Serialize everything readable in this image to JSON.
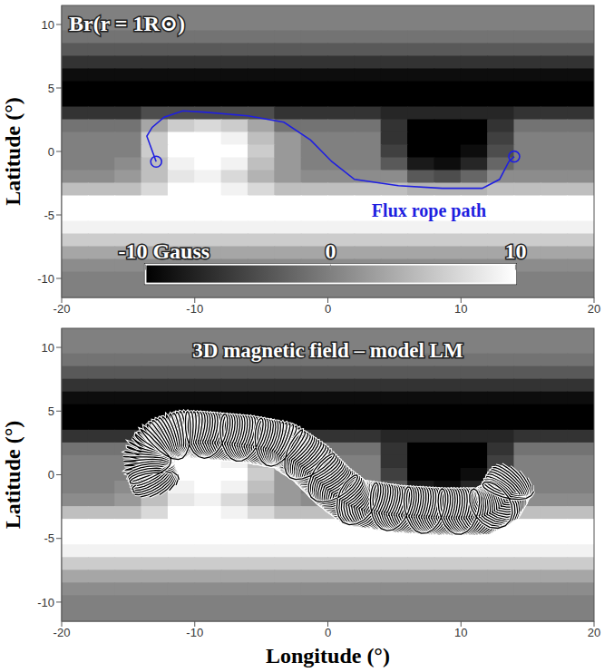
{
  "chart_data": [
    {
      "type": "heatmap",
      "title": "Br(r = 1R⊙)",
      "ylabel": "Latitude (°)",
      "xlim": [
        -20,
        20
      ],
      "xticks": [
        -20,
        -10,
        0,
        10,
        20
      ],
      "ylim": [
        -11.5,
        11.5
      ],
      "yticks": [
        -10,
        -5,
        0,
        5,
        10
      ],
      "colorbar": {
        "range": [
          -10,
          10
        ],
        "ticks": [
          {
            "value": -10,
            "label": "-10 Gauss"
          },
          0,
          10
        ]
      },
      "series": [
        {
          "name": "Flux rope path",
          "type": "line",
          "color": "#1f1fe0",
          "marker": "circle",
          "x": [
            -12.9,
            -13.6,
            -13.2,
            -12.3,
            -10.9,
            -9.3,
            -6.0,
            -3.3,
            -1.3,
            0.3,
            2.0,
            5.3,
            8.6,
            11.6,
            12.9,
            13.6,
            14.0
          ],
          "y": [
            -0.8,
            1.2,
            1.9,
            2.7,
            3.2,
            3.1,
            2.8,
            2.3,
            0.9,
            -0.8,
            -2.2,
            -2.7,
            -2.9,
            -2.9,
            -2.2,
            -0.8,
            -0.4
          ]
        }
      ]
    },
    {
      "type": "heatmap",
      "title": "3D magnetic field – model LM",
      "xlabel": "Longitude (°)",
      "ylabel": "Latitude (°)",
      "xlim": [
        -20,
        20
      ],
      "xticks": [
        -20,
        -10,
        0,
        10,
        20
      ],
      "ylim": [
        -11.5,
        11.5
      ],
      "yticks": [
        -10,
        -5,
        0,
        5,
        10
      ],
      "series": [
        {
          "type": "field_lines",
          "color": "#000000"
        }
      ]
    }
  ],
  "magnetogram": {
    "x": [
      -19,
      -17,
      -15,
      -13,
      -11,
      -9,
      -7,
      -5,
      -3,
      -1,
      1,
      3,
      5,
      7,
      9,
      11,
      13,
      15,
      17,
      19
    ],
    "y": [
      11,
      10,
      9,
      8,
      7,
      6,
      5,
      4,
      3,
      2,
      1,
      0,
      -1,
      -2,
      -3,
      -4,
      -5,
      -6,
      -7,
      -8,
      -9,
      -10,
      -11
    ],
    "values": [
      [
        0,
        0,
        0,
        0,
        0,
        0,
        0,
        0,
        0,
        0,
        0,
        0,
        0,
        0,
        0,
        0,
        0,
        0,
        0,
        0
      ],
      [
        0,
        0,
        0,
        0,
        0,
        0,
        0,
        0,
        0,
        0,
        0,
        0,
        0,
        0,
        0,
        0,
        0,
        0,
        0,
        0
      ],
      [
        -1,
        -1,
        -1,
        -1,
        -1,
        -1,
        -1,
        -1,
        -1,
        -1,
        -1,
        -1,
        -1,
        -1,
        -1,
        -1,
        -1,
        -1,
        -1,
        -1
      ],
      [
        -3,
        -3,
        -3,
        -3,
        -3,
        -3,
        -3,
        -3,
        -3,
        -3,
        -3,
        -3,
        -3,
        -3,
        -3,
        -3,
        -3,
        -3,
        -3,
        -3
      ],
      [
        -6,
        -6,
        -6,
        -6,
        -6,
        -6,
        -6,
        -6,
        -6,
        -6,
        -6,
        -6,
        -6,
        -6,
        -6,
        -6,
        -6,
        -6,
        -6,
        -6
      ],
      [
        -9,
        -9,
        -9,
        -9,
        -9,
        -9,
        -9,
        -9,
        -9,
        -9,
        -9,
        -9,
        -9,
        -9,
        -9,
        -9,
        -9,
        -9,
        -9,
        -9
      ],
      [
        -10,
        -10,
        -10,
        -10,
        -10,
        -10,
        -10,
        -10,
        -10,
        -10,
        -10,
        -10,
        -10,
        -10,
        -10,
        -10,
        -10,
        -10,
        -10,
        -10
      ],
      [
        -10,
        -10,
        -10,
        -10,
        -10,
        -10,
        -10,
        -10,
        -10,
        -10,
        -10,
        -10,
        -10,
        -10,
        -10,
        -10,
        -10,
        -10,
        -10,
        -10
      ],
      [
        -6,
        -6,
        -6,
        -4,
        -4,
        -4,
        -4,
        -4,
        -6,
        -6,
        -6,
        -6,
        -7,
        -7,
        -7,
        -7,
        -7,
        -6,
        -6,
        -6
      ],
      [
        -1,
        -1,
        -1,
        3,
        6,
        7,
        6,
        3,
        -1,
        -1,
        -1,
        -1,
        -6,
        -10,
        -10,
        -10,
        -6,
        -1,
        -1,
        -1
      ],
      [
        0,
        0,
        0,
        6,
        10,
        10,
        9,
        5,
        2,
        0,
        0,
        0,
        -6,
        -10,
        -10,
        -10,
        -5,
        0,
        0,
        0
      ],
      [
        0,
        0,
        0,
        6,
        10,
        10,
        10,
        6,
        2,
        0,
        0,
        0,
        -5,
        -10,
        -10,
        -9,
        -4,
        0,
        0,
        0
      ],
      [
        0,
        0,
        1,
        5,
        9,
        10,
        9,
        5,
        2,
        0,
        0,
        0,
        -3,
        -8,
        -9,
        -7,
        -2,
        0,
        0,
        0
      ],
      [
        1,
        1,
        2,
        5,
        8,
        9,
        7,
        4,
        2,
        1,
        1,
        1,
        1,
        -3,
        -4,
        -2,
        1,
        1,
        1,
        1
      ],
      [
        5,
        5,
        5,
        7,
        10,
        10,
        9,
        7,
        5,
        5,
        5,
        5,
        5,
        4,
        4,
        4,
        5,
        5,
        5,
        5
      ],
      [
        10,
        10,
        10,
        10,
        10,
        10,
        10,
        10,
        10,
        10,
        10,
        10,
        10,
        10,
        10,
        10,
        10,
        10,
        10,
        10
      ],
      [
        10,
        10,
        10,
        10,
        10,
        10,
        10,
        10,
        10,
        10,
        10,
        10,
        10,
        10,
        10,
        10,
        10,
        10,
        10,
        10
      ],
      [
        9,
        9,
        9,
        9,
        9,
        9,
        9,
        9,
        9,
        9,
        9,
        9,
        9,
        9,
        9,
        9,
        9,
        9,
        9,
        9
      ],
      [
        6,
        6,
        6,
        6,
        6,
        6,
        6,
        6,
        6,
        6,
        6,
        6,
        6,
        6,
        6,
        6,
        6,
        6,
        6,
        6
      ],
      [
        3,
        3,
        3,
        3,
        3,
        3,
        3,
        3,
        3,
        3,
        3,
        3,
        3,
        3,
        3,
        3,
        3,
        3,
        3,
        3
      ],
      [
        1,
        1,
        1,
        1,
        1,
        1,
        1,
        1,
        1,
        1,
        1,
        1,
        1,
        1,
        1,
        1,
        1,
        1,
        1,
        1
      ],
      [
        0,
        0,
        0,
        0,
        0,
        0,
        0,
        0,
        0,
        0,
        0,
        0,
        0,
        0,
        0,
        0,
        0,
        0,
        0,
        0
      ],
      [
        0,
        0,
        0,
        0,
        0,
        0,
        0,
        0,
        0,
        0,
        0,
        0,
        0,
        0,
        0,
        0,
        0,
        0,
        0,
        0
      ]
    ]
  }
}
